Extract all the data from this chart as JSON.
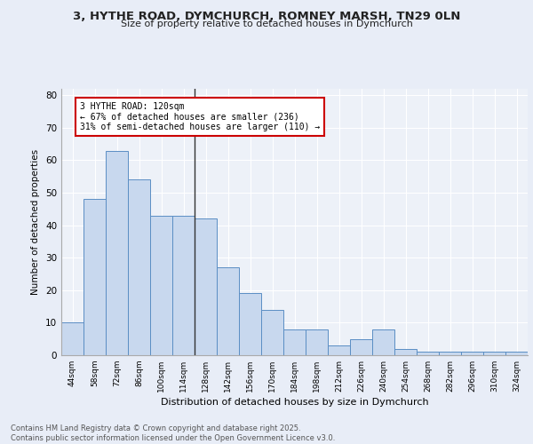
{
  "title_line1": "3, HYTHE ROAD, DYMCHURCH, ROMNEY MARSH, TN29 0LN",
  "title_line2": "Size of property relative to detached houses in Dymchurch",
  "xlabel": "Distribution of detached houses by size in Dymchurch",
  "ylabel": "Number of detached properties",
  "categories": [
    "44sqm",
    "58sqm",
    "72sqm",
    "86sqm",
    "100sqm",
    "114sqm",
    "128sqm",
    "142sqm",
    "156sqm",
    "170sqm",
    "184sqm",
    "198sqm",
    "212sqm",
    "226sqm",
    "240sqm",
    "254sqm",
    "268sqm",
    "282sqm",
    "296sqm",
    "310sqm",
    "324sqm"
  ],
  "bar_heights": [
    10,
    48,
    63,
    54,
    43,
    43,
    42,
    27,
    19,
    14,
    8,
    8,
    3,
    5,
    8,
    2,
    1,
    1,
    1,
    1,
    1
  ],
  "bar_color": "#c8d8ee",
  "bar_edge_color": "#5b8ec4",
  "annotation_text": "3 HYTHE ROAD: 120sqm\n← 67% of detached houses are smaller (236)\n31% of semi-detached houses are larger (110) →",
  "annotation_box_color": "#ffffff",
  "annotation_box_edge_color": "#cc0000",
  "vline_color": "#333333",
  "footer": "Contains HM Land Registry data © Crown copyright and database right 2025.\nContains public sector information licensed under the Open Government Licence v3.0.",
  "background_color": "#e8edf7",
  "plot_background_color": "#edf1f8",
  "ylim": [
    0,
    82
  ],
  "yticks": [
    0,
    10,
    20,
    30,
    40,
    50,
    60,
    70,
    80
  ]
}
